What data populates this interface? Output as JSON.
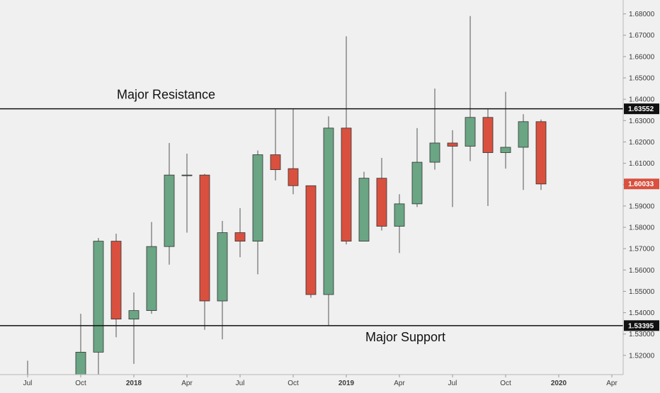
{
  "chart_data": {
    "type": "candlestick",
    "colors": {
      "background": "#f0f0f0",
      "up": "#6aa584",
      "down": "#d9503f",
      "wick": "#555555",
      "axis_text": "#3a3a3a",
      "level_line": "#111111",
      "last_price_badge": "#d9503f",
      "level_badge": "#111111"
    },
    "y_axis": {
      "position": "right",
      "range": [
        1.511,
        1.6865
      ],
      "ticks": [
        "1.52000",
        "1.53000",
        "1.54000",
        "1.55000",
        "1.56000",
        "1.57000",
        "1.58000",
        "1.59000",
        "1.60000",
        "1.61000",
        "1.62000",
        "1.63000",
        "1.64000",
        "1.65000",
        "1.66000",
        "1.67000",
        "1.68000"
      ]
    },
    "x_axis": {
      "labels": [
        {
          "text": "Jul",
          "month_index": 0,
          "bold": false
        },
        {
          "text": "Oct",
          "month_index": 3,
          "bold": false
        },
        {
          "text": "2018",
          "month_index": 6,
          "bold": true
        },
        {
          "text": "Apr",
          "month_index": 9,
          "bold": false
        },
        {
          "text": "Jul",
          "month_index": 12,
          "bold": false
        },
        {
          "text": "Oct",
          "month_index": 15,
          "bold": false
        },
        {
          "text": "2019",
          "month_index": 18,
          "bold": true
        },
        {
          "text": "Apr",
          "month_index": 21,
          "bold": false
        },
        {
          "text": "Jul",
          "month_index": 24,
          "bold": false
        },
        {
          "text": "Oct",
          "month_index": 27,
          "bold": false
        },
        {
          "text": "2020",
          "month_index": 30,
          "bold": true
        },
        {
          "text": "Apr",
          "month_index": 33,
          "bold": false
        }
      ]
    },
    "candles": [
      {
        "m": 0,
        "o": 1.509,
        "h": 1.5175,
        "l": 1.505,
        "c": 1.511
      },
      {
        "m": 3,
        "o": 1.51,
        "h": 1.5395,
        "l": 1.508,
        "c": 1.5215
      },
      {
        "m": 4,
        "o": 1.5215,
        "h": 1.575,
        "l": 1.5105,
        "c": 1.5735
      },
      {
        "m": 5,
        "o": 1.5735,
        "h": 1.577,
        "l": 1.5285,
        "c": 1.537
      },
      {
        "m": 6,
        "o": 1.537,
        "h": 1.5495,
        "l": 1.516,
        "c": 1.541
      },
      {
        "m": 7,
        "o": 1.541,
        "h": 1.5825,
        "l": 1.5395,
        "c": 1.571
      },
      {
        "m": 8,
        "o": 1.571,
        "h": 1.6195,
        "l": 1.5625,
        "c": 1.6045
      },
      {
        "m": 9,
        "o": 1.6045,
        "h": 1.6145,
        "l": 1.5775,
        "c": 1.6045
      },
      {
        "m": 10,
        "o": 1.6045,
        "h": 1.605,
        "l": 1.532,
        "c": 1.5455
      },
      {
        "m": 11,
        "o": 1.5455,
        "h": 1.583,
        "l": 1.5275,
        "c": 1.5775
      },
      {
        "m": 12,
        "o": 1.5775,
        "h": 1.589,
        "l": 1.566,
        "c": 1.5735
      },
      {
        "m": 13,
        "o": 1.5735,
        "h": 1.616,
        "l": 1.558,
        "c": 1.614
      },
      {
        "m": 14,
        "o": 1.614,
        "h": 1.6355,
        "l": 1.602,
        "c": 1.607
      },
      {
        "m": 15,
        "o": 1.6075,
        "h": 1.6355,
        "l": 1.5955,
        "c": 1.5995
      },
      {
        "m": 16,
        "o": 1.5995,
        "h": 1.5995,
        "l": 1.547,
        "c": 1.5485
      },
      {
        "m": 17,
        "o": 1.5485,
        "h": 1.632,
        "l": 1.534,
        "c": 1.6265
      },
      {
        "m": 18,
        "o": 1.6265,
        "h": 1.6695,
        "l": 1.572,
        "c": 1.5735
      },
      {
        "m": 19,
        "o": 1.5735,
        "h": 1.606,
        "l": 1.5735,
        "c": 1.603
      },
      {
        "m": 20,
        "o": 1.603,
        "h": 1.6125,
        "l": 1.5785,
        "c": 1.5805
      },
      {
        "m": 21,
        "o": 1.5805,
        "h": 1.5955,
        "l": 1.568,
        "c": 1.591
      },
      {
        "m": 22,
        "o": 1.591,
        "h": 1.6265,
        "l": 1.5895,
        "c": 1.6105
      },
      {
        "m": 23,
        "o": 1.6105,
        "h": 1.645,
        "l": 1.607,
        "c": 1.6195
      },
      {
        "m": 24,
        "o": 1.6195,
        "h": 1.6255,
        "l": 1.5895,
        "c": 1.618
      },
      {
        "m": 25,
        "o": 1.618,
        "h": 1.679,
        "l": 1.611,
        "c": 1.6315
      },
      {
        "m": 26,
        "o": 1.6315,
        "h": 1.6355,
        "l": 1.59,
        "c": 1.615
      },
      {
        "m": 27,
        "o": 1.615,
        "h": 1.6435,
        "l": 1.6075,
        "c": 1.6175
      },
      {
        "m": 28,
        "o": 1.6175,
        "h": 1.633,
        "l": 1.5975,
        "c": 1.6295
      },
      {
        "m": 29,
        "o": 1.6295,
        "h": 1.6305,
        "l": 1.5975,
        "c": 1.6003
      }
    ],
    "levels": [
      {
        "name": "resistance",
        "value": 1.63552,
        "label": "1.63552",
        "annotation": "Major Resistance"
      },
      {
        "name": "support",
        "value": 1.53395,
        "label": "1.53395",
        "annotation": "Major Support"
      }
    ],
    "last_price": {
      "value": 1.60033,
      "label": "1.60033"
    }
  }
}
